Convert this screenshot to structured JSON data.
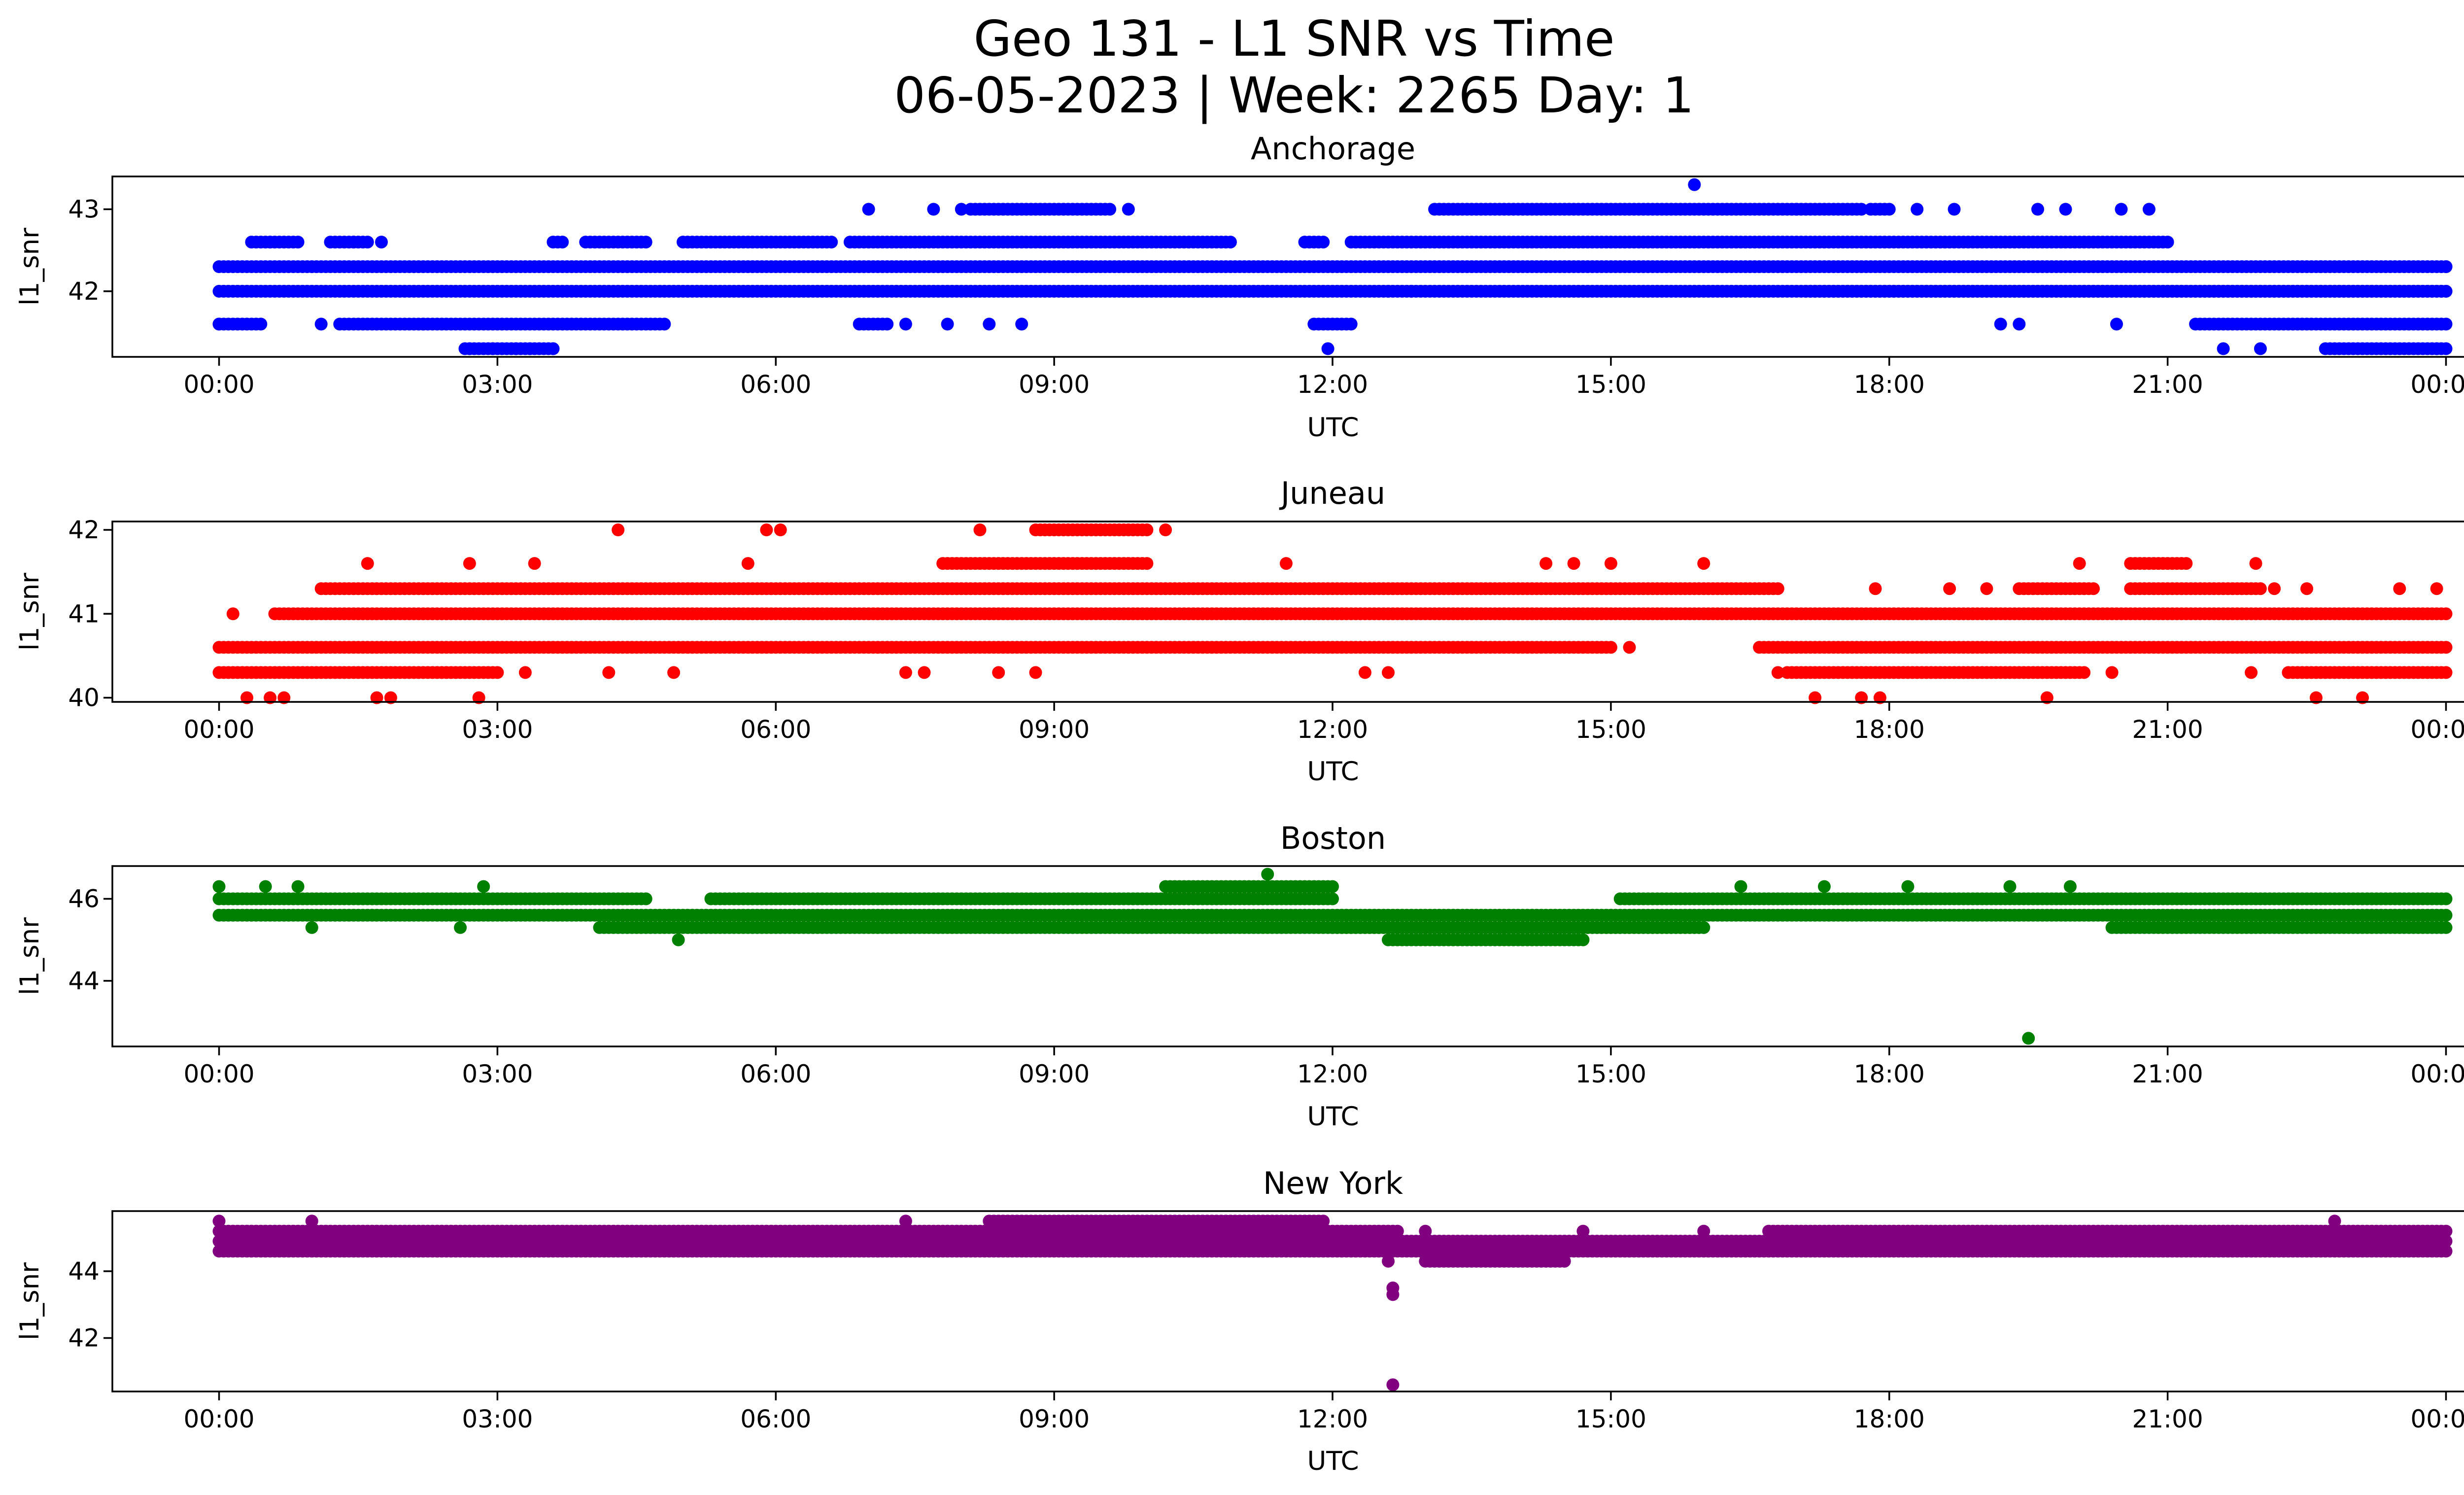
{
  "figure": {
    "title_line1": "Geo 131 - L1 SNR vs Time",
    "title_line2": "06-05-2023 | Week: 2265 Day: 1"
  },
  "chart_data": [
    {
      "type": "scatter",
      "title": "Anchorage",
      "xlabel": "UTC",
      "ylabel": "l1_snr",
      "color": "#0000ff",
      "x_range_hours": [
        -1.15,
        25.15
      ],
      "ylim": [
        41.2,
        43.4
      ],
      "yticks": [
        42,
        43
      ],
      "xticks": [
        "00:00",
        "03:00",
        "06:00",
        "09:00",
        "12:00",
        "15:00",
        "18:00",
        "21:00",
        "00:00"
      ],
      "grid": false,
      "series": [
        {
          "values": [
            {
              "y": 42.3,
              "start": 0.0,
              "end": 24.0
            },
            {
              "y": 42.0,
              "start": 0.0,
              "end": 24.0
            },
            {
              "y": 42.6,
              "start": 0.35,
              "end": 0.85
            },
            {
              "y": 42.6,
              "start": 1.2,
              "end": 1.6
            },
            {
              "y": 42.6,
              "start": 3.6,
              "end": 3.7
            },
            {
              "y": 42.6,
              "start": 3.95,
              "end": 4.6
            },
            {
              "y": 42.6,
              "start": 5.0,
              "end": 6.6
            },
            {
              "y": 42.6,
              "start": 6.8,
              "end": 10.9
            },
            {
              "y": 42.6,
              "start": 11.7,
              "end": 11.9
            },
            {
              "y": 42.6,
              "start": 12.2,
              "end": 21.0
            },
            {
              "y": 41.6,
              "start": 0.0,
              "end": 0.45
            },
            {
              "y": 41.6,
              "start": 1.3,
              "end": 4.8
            },
            {
              "y": 41.6,
              "start": 6.9,
              "end": 7.2
            },
            {
              "y": 41.6,
              "start": 11.8,
              "end": 12.2
            },
            {
              "y": 41.6,
              "start": 21.3,
              "end": 24.0
            },
            {
              "y": 43.0,
              "start": 8.1,
              "end": 9.6
            },
            {
              "y": 43.0,
              "start": 13.1,
              "end": 17.7
            },
            {
              "y": 43.0,
              "start": 17.8,
              "end": 18.0
            },
            {
              "y": 41.3,
              "start": 2.65,
              "end": 3.6
            },
            {
              "y": 41.3,
              "start": 22.7,
              "end": 24.0
            },
            {
              "y": 42.0,
              "start": 17.1,
              "end": 24.0
            }
          ],
          "points": [
            {
              "x": 0.0,
              "y": 41.6
            },
            {
              "x": 0.55,
              "y": 42.6
            },
            {
              "x": 1.45,
              "y": 42.6
            },
            {
              "x": 1.75,
              "y": 42.6
            },
            {
              "x": 1.1,
              "y": 41.6
            },
            {
              "x": 2.2,
              "y": 41.6
            },
            {
              "x": 2.7,
              "y": 41.3
            },
            {
              "x": 2.95,
              "y": 41.3
            },
            {
              "x": 3.2,
              "y": 41.3
            },
            {
              "x": 3.35,
              "y": 41.3
            },
            {
              "x": 3.6,
              "y": 41.3
            },
            {
              "x": 7.0,
              "y": 43.0
            },
            {
              "x": 7.7,
              "y": 43.0
            },
            {
              "x": 8.0,
              "y": 43.0
            },
            {
              "x": 9.8,
              "y": 43.0
            },
            {
              "x": 7.4,
              "y": 41.6
            },
            {
              "x": 7.85,
              "y": 41.6
            },
            {
              "x": 8.3,
              "y": 41.6
            },
            {
              "x": 8.65,
              "y": 41.6
            },
            {
              "x": 11.95,
              "y": 41.3
            },
            {
              "x": 12.6,
              "y": 42.0
            },
            {
              "x": 12.85,
              "y": 42.0
            },
            {
              "x": 14.3,
              "y": 42.3
            },
            {
              "x": 15.9,
              "y": 43.3
            },
            {
              "x": 18.3,
              "y": 43.0
            },
            {
              "x": 18.7,
              "y": 43.0
            },
            {
              "x": 19.2,
              "y": 41.6
            },
            {
              "x": 19.4,
              "y": 41.6
            },
            {
              "x": 20.45,
              "y": 41.6
            },
            {
              "x": 20.5,
              "y": 43.0
            },
            {
              "x": 20.8,
              "y": 43.0
            },
            {
              "x": 21.6,
              "y": 41.3
            },
            {
              "x": 22.0,
              "y": 41.3
            },
            {
              "x": 22.65,
              "y": 42.3
            },
            {
              "x": 24.0,
              "y": 42.3
            },
            {
              "x": 23.9,
              "y": 41.3
            },
            {
              "x": 19.6,
              "y": 43.0
            },
            {
              "x": 19.9,
              "y": 43.0
            },
            {
              "x": 17.0,
              "y": 43.0
            }
          ]
        }
      ]
    },
    {
      "type": "scatter",
      "title": "Juneau",
      "xlabel": "UTC",
      "ylabel": "l1_snr",
      "color": "#ff0000",
      "x_range_hours": [
        -1.15,
        25.15
      ],
      "ylim": [
        39.95,
        42.1
      ],
      "yticks": [
        40,
        41,
        42
      ],
      "xticks": [
        "00:00",
        "03:00",
        "06:00",
        "09:00",
        "12:00",
        "15:00",
        "18:00",
        "21:00",
        "00:00"
      ],
      "grid": false,
      "series": [
        {
          "values": [
            {
              "y": 40.6,
              "start": 0.0,
              "end": 15.0
            },
            {
              "y": 40.6,
              "start": 16.6,
              "end": 24.0
            },
            {
              "y": 41.0,
              "start": 0.6,
              "end": 24.0
            },
            {
              "y": 40.3,
              "start": 0.0,
              "end": 3.0
            },
            {
              "y": 40.3,
              "start": 16.9,
              "end": 20.1
            },
            {
              "y": 40.3,
              "start": 22.3,
              "end": 24.0
            },
            {
              "y": 41.3,
              "start": 1.1,
              "end": 16.8
            },
            {
              "y": 41.3,
              "start": 19.4,
              "end": 20.2
            },
            {
              "y": 41.3,
              "start": 20.6,
              "end": 22.0
            },
            {
              "y": 41.6,
              "start": 7.8,
              "end": 10.0
            },
            {
              "y": 41.6,
              "start": 20.6,
              "end": 21.2
            },
            {
              "y": 42.0,
              "start": 8.8,
              "end": 10.0
            }
          ],
          "points": [
            {
              "x": 0.15,
              "y": 41.0
            },
            {
              "x": 0.3,
              "y": 40.0
            },
            {
              "x": 0.55,
              "y": 40.0
            },
            {
              "x": 0.7,
              "y": 40.0
            },
            {
              "x": 1.6,
              "y": 41.6
            },
            {
              "x": 1.7,
              "y": 40.0
            },
            {
              "x": 1.85,
              "y": 40.0
            },
            {
              "x": 2.7,
              "y": 41.6
            },
            {
              "x": 2.8,
              "y": 40.0
            },
            {
              "x": 3.3,
              "y": 40.3
            },
            {
              "x": 3.4,
              "y": 41.6
            },
            {
              "x": 4.2,
              "y": 40.3
            },
            {
              "x": 4.3,
              "y": 42.0
            },
            {
              "x": 4.9,
              "y": 40.3
            },
            {
              "x": 5.7,
              "y": 41.6
            },
            {
              "x": 5.9,
              "y": 42.0
            },
            {
              "x": 6.05,
              "y": 42.0
            },
            {
              "x": 7.4,
              "y": 40.3
            },
            {
              "x": 7.6,
              "y": 40.3
            },
            {
              "x": 8.2,
              "y": 42.0
            },
            {
              "x": 8.4,
              "y": 40.3
            },
            {
              "x": 8.8,
              "y": 40.3
            },
            {
              "x": 10.2,
              "y": 42.0
            },
            {
              "x": 11.5,
              "y": 41.6
            },
            {
              "x": 12.35,
              "y": 40.3
            },
            {
              "x": 12.6,
              "y": 40.3
            },
            {
              "x": 14.3,
              "y": 41.6
            },
            {
              "x": 14.6,
              "y": 41.6
            },
            {
              "x": 15.0,
              "y": 41.6
            },
            {
              "x": 15.2,
              "y": 40.6
            },
            {
              "x": 16.0,
              "y": 41.6
            },
            {
              "x": 16.8,
              "y": 40.3
            },
            {
              "x": 17.2,
              "y": 40.0
            },
            {
              "x": 17.7,
              "y": 40.0
            },
            {
              "x": 17.9,
              "y": 40.0
            },
            {
              "x": 17.85,
              "y": 41.3
            },
            {
              "x": 18.65,
              "y": 41.3
            },
            {
              "x": 19.05,
              "y": 41.3
            },
            {
              "x": 19.7,
              "y": 40.0
            },
            {
              "x": 20.05,
              "y": 41.6
            },
            {
              "x": 20.4,
              "y": 40.3
            },
            {
              "x": 21.9,
              "y": 40.3
            },
            {
              "x": 21.95,
              "y": 41.6
            },
            {
              "x": 22.15,
              "y": 41.3
            },
            {
              "x": 22.5,
              "y": 41.3
            },
            {
              "x": 22.6,
              "y": 40.0
            },
            {
              "x": 23.1,
              "y": 40.0
            },
            {
              "x": 23.5,
              "y": 41.3
            },
            {
              "x": 23.9,
              "y": 41.3
            }
          ]
        }
      ]
    },
    {
      "type": "scatter",
      "title": "Boston",
      "xlabel": "UTC",
      "ylabel": "l1_snr",
      "color": "#008000",
      "x_range_hours": [
        -1.15,
        25.15
      ],
      "ylim": [
        42.4,
        46.8
      ],
      "yticks": [
        44,
        46
      ],
      "xticks": [
        "00:00",
        "03:00",
        "06:00",
        "09:00",
        "12:00",
        "15:00",
        "18:00",
        "21:00",
        "00:00"
      ],
      "grid": false,
      "series": [
        {
          "values": [
            {
              "y": 45.6,
              "start": 0.0,
              "end": 24.0
            },
            {
              "y": 46.0,
              "start": 0.0,
              "end": 4.6
            },
            {
              "y": 46.0,
              "start": 5.3,
              "end": 12.0
            },
            {
              "y": 46.0,
              "start": 15.1,
              "end": 24.0
            },
            {
              "y": 45.3,
              "start": 4.1,
              "end": 16.0
            },
            {
              "y": 45.3,
              "start": 12.0,
              "end": 16.0
            },
            {
              "y": 45.3,
              "start": 20.4,
              "end": 24.0
            },
            {
              "y": 45.0,
              "start": 12.6,
              "end": 14.7
            },
            {
              "y": 46.3,
              "start": 10.2,
              "end": 12.0
            }
          ],
          "points": [
            {
              "x": 0.0,
              "y": 46.3
            },
            {
              "x": 0.5,
              "y": 46.3
            },
            {
              "x": 0.85,
              "y": 46.3
            },
            {
              "x": 1.0,
              "y": 45.3
            },
            {
              "x": 2.6,
              "y": 45.3
            },
            {
              "x": 2.85,
              "y": 46.3
            },
            {
              "x": 4.95,
              "y": 45.0
            },
            {
              "x": 11.3,
              "y": 46.6
            },
            {
              "x": 16.4,
              "y": 46.3
            },
            {
              "x": 17.3,
              "y": 46.3
            },
            {
              "x": 18.2,
              "y": 46.3
            },
            {
              "x": 19.3,
              "y": 46.3
            },
            {
              "x": 19.5,
              "y": 42.6
            },
            {
              "x": 19.95,
              "y": 46.3
            },
            {
              "x": 23.5,
              "y": 46.0
            }
          ]
        }
      ]
    },
    {
      "type": "scatter",
      "title": "New York",
      "xlabel": "UTC",
      "ylabel": "l1_snr",
      "color": "#800080",
      "x_range_hours": [
        -1.15,
        25.15
      ],
      "ylim": [
        40.4,
        45.8
      ],
      "yticks": [
        42,
        44
      ],
      "xticks": [
        "00:00",
        "03:00",
        "06:00",
        "09:00",
        "12:00",
        "15:00",
        "18:00",
        "21:00",
        "00:00"
      ],
      "grid": false,
      "series": [
        {
          "values": [
            {
              "y": 44.9,
              "start": 0.0,
              "end": 24.0
            },
            {
              "y": 45.2,
              "start": 0.0,
              "end": 12.7
            },
            {
              "y": 45.2,
              "start": 16.7,
              "end": 24.0
            },
            {
              "y": 44.6,
              "start": 0.0,
              "end": 24.0
            },
            {
              "y": 45.5,
              "start": 8.3,
              "end": 11.9
            },
            {
              "y": 44.3,
              "start": 13.0,
              "end": 14.5
            }
          ],
          "points": [
            {
              "x": 0.0,
              "y": 45.5
            },
            {
              "x": 1.0,
              "y": 45.5
            },
            {
              "x": 7.4,
              "y": 45.5
            },
            {
              "x": 12.6,
              "y": 44.3
            },
            {
              "x": 12.65,
              "y": 43.5
            },
            {
              "x": 12.65,
              "y": 43.3
            },
            {
              "x": 12.65,
              "y": 40.6
            },
            {
              "x": 13.0,
              "y": 45.2
            },
            {
              "x": 14.7,
              "y": 45.2
            },
            {
              "x": 16.0,
              "y": 45.2
            },
            {
              "x": 22.8,
              "y": 45.5
            }
          ]
        }
      ]
    }
  ]
}
